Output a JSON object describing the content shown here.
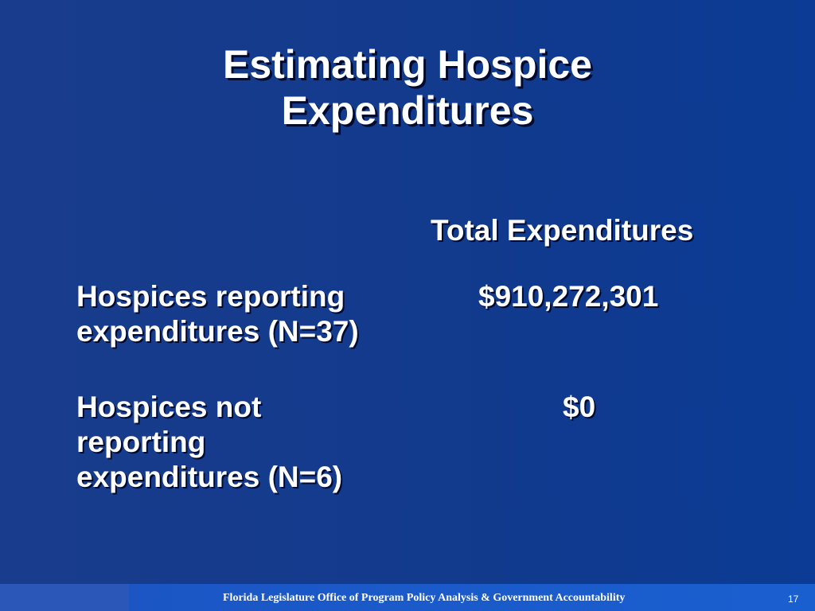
{
  "slide": {
    "title_line1": "Estimating Hospice",
    "title_line2": "Expenditures",
    "column_header": "Total Expenditures",
    "rows": [
      {
        "label_lines": [
          "Hospices reporting",
          "expenditures (N=37)"
        ],
        "value": "$910,272,301"
      },
      {
        "label_lines": [
          "Hospices not",
          "reporting",
          "expenditures (N=6)"
        ],
        "value": "$0"
      }
    ]
  },
  "footer": {
    "organization": "Florida Legislature Office of Program Policy Analysis & Government Accountability",
    "page_number": "17"
  }
}
